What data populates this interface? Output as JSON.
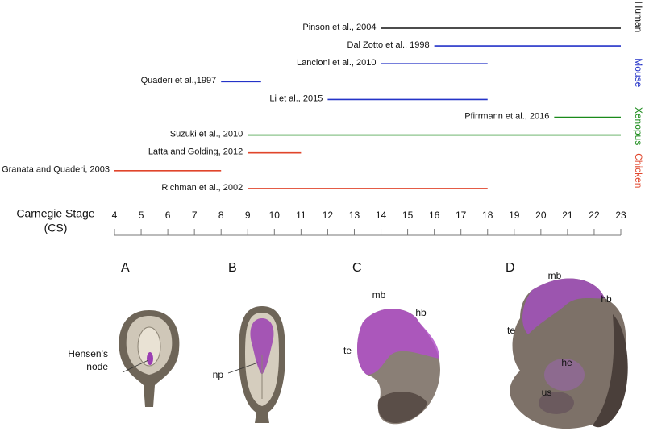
{
  "chart_data": {
    "type": "range",
    "xlabel": "Carnegie Stage",
    "xlabel_unit": "(CS)",
    "xlim": [
      4,
      23
    ],
    "xticks": [
      4,
      5,
      6,
      7,
      8,
      9,
      10,
      11,
      12,
      13,
      14,
      15,
      16,
      17,
      18,
      19,
      20,
      21,
      22,
      23
    ],
    "groups": [
      {
        "name": "Human",
        "color": "#111111",
        "studies": [
          {
            "label": "Pinson et al., 2004",
            "start": 14,
            "end": 23
          }
        ]
      },
      {
        "name": "Mouse",
        "color": "#2433c8",
        "studies": [
          {
            "label": "Dal Zotto et al., 1998",
            "start": 16,
            "end": 23
          },
          {
            "label": "Lancioni et al., 2010",
            "start": 14,
            "end": 18
          },
          {
            "label": "Quaderi et al.,1997",
            "start": 8,
            "end": 9.5
          },
          {
            "label": "Li et al., 2015",
            "start": 12,
            "end": 18
          }
        ]
      },
      {
        "name": "Xenopus",
        "color": "#1a8a1a",
        "studies": [
          {
            "label": "Pfirrmann et al., 2016",
            "start": 20.5,
            "end": 23
          },
          {
            "label": "Suzuki et al., 2010",
            "start": 9,
            "end": 23
          }
        ]
      },
      {
        "name": "Chicken",
        "color": "#e0452b",
        "studies": [
          {
            "label": "Latta and Golding, 2012",
            "start": 9,
            "end": 11
          },
          {
            "label": "Granata and Quaderi, 2003",
            "start": 4,
            "end": 8
          },
          {
            "label": "Richman et al., 2002",
            "start": 9,
            "end": 18
          }
        ]
      }
    ]
  },
  "panels": [
    {
      "letter": "A",
      "labels": [
        "Hensen’s",
        "node"
      ]
    },
    {
      "letter": "B",
      "labels": [
        "np"
      ]
    },
    {
      "letter": "C",
      "labels": [
        "mb",
        "hb",
        "te"
      ]
    },
    {
      "letter": "D",
      "labels": [
        "mb",
        "hb",
        "te",
        "he",
        "us"
      ]
    }
  ]
}
